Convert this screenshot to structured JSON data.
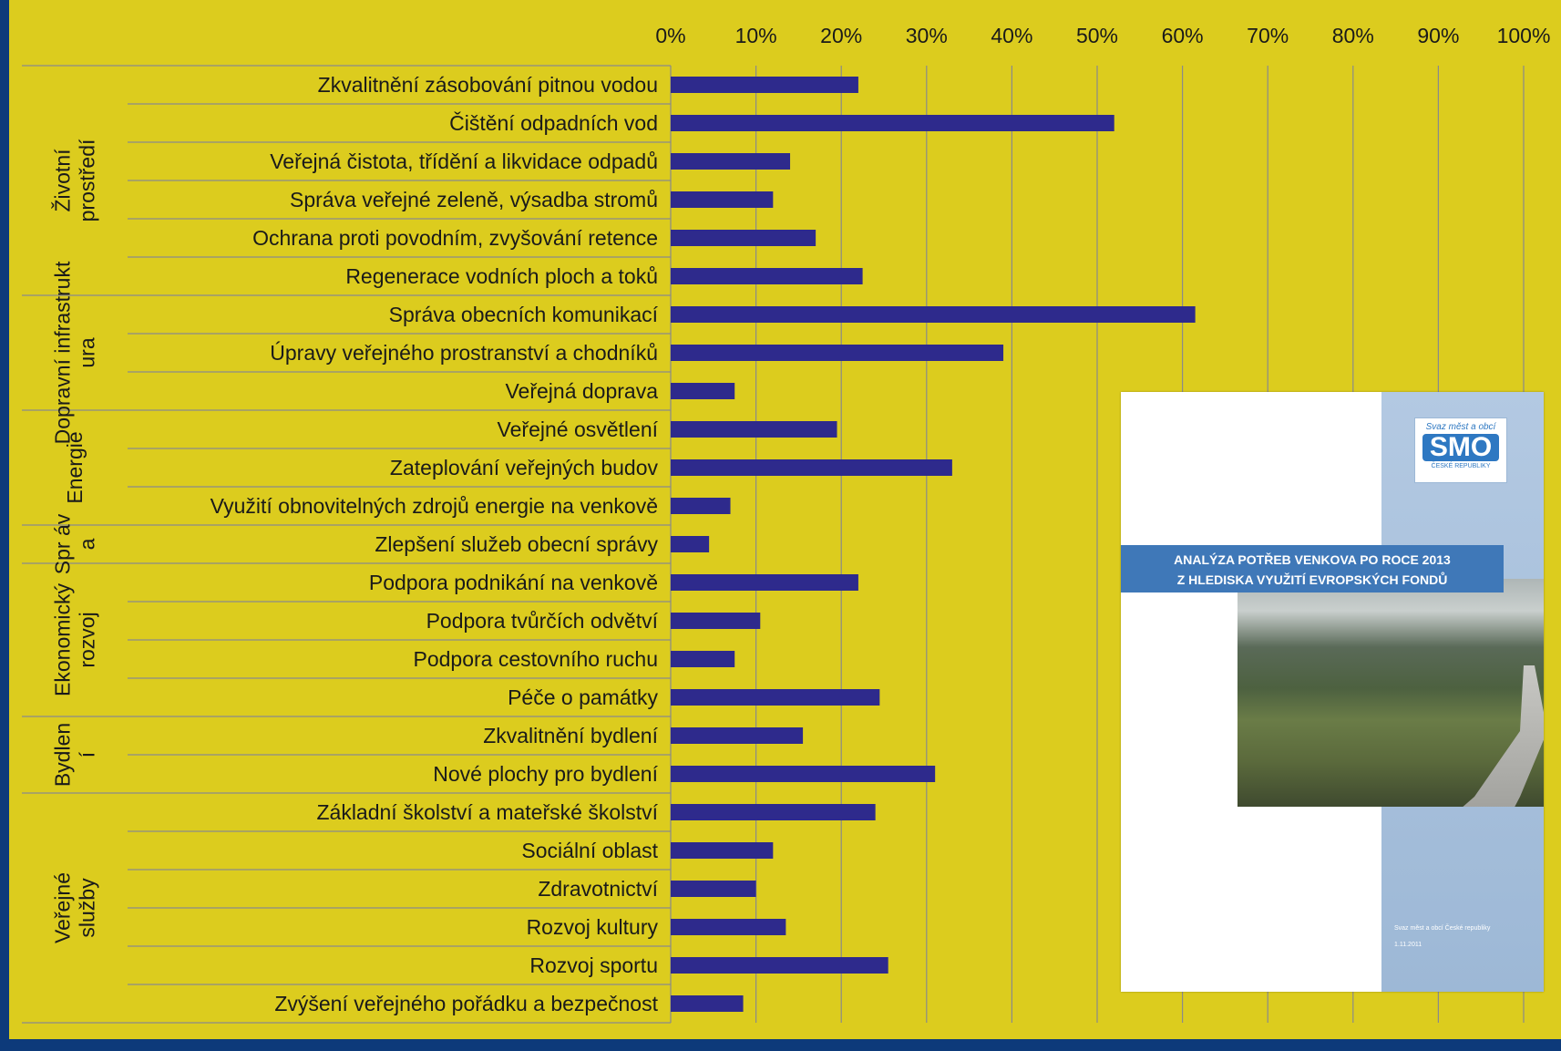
{
  "chart_data": {
    "type": "bar",
    "orientation": "horizontal",
    "title": "",
    "xlabel": "",
    "ylabel": "",
    "xlim": [
      0,
      100
    ],
    "x_ticks": [
      "0%",
      "10%",
      "20%",
      "30%",
      "40%",
      "50%",
      "60%",
      "70%",
      "80%",
      "90%",
      "100%"
    ],
    "grid": "vertical",
    "bar_color": "#2e2a8c",
    "groups": [
      {
        "label": "Životní prostředí",
        "start": 0,
        "count": 6
      },
      {
        "label": "Dopravní infrastrukt ura",
        "start": 6,
        "count": 3
      },
      {
        "label": "Energie",
        "start": 9,
        "count": 3
      },
      {
        "label": "Spr áv a",
        "start": 12,
        "count": 1
      },
      {
        "label": "Ekonomický rozvoj",
        "start": 13,
        "count": 4
      },
      {
        "label": "Bydlen í",
        "start": 17,
        "count": 2
      },
      {
        "label": "Veřejné služby",
        "start": 19,
        "count": 6
      }
    ],
    "categories": [
      "Zkvalitnění zásobování pitnou vodou",
      "Čištění odpadních vod",
      "Veřejná čistota, třídění a likvidace odpadů",
      "Správa veřejné zeleně, výsadba stromů",
      "Ochrana proti povodním, zvyšování retence",
      "Regenerace vodních ploch a toků",
      "Správa obecních komunikací",
      "Úpravy veřejného prostranství a chodníků",
      "Veřejná doprava",
      "Veřejné osvětlení",
      "Zateplování veřejných budov",
      "Využití obnovitelných zdrojů energie na venkově",
      "Zlepšení služeb obecní správy",
      "Podpora podnikání na venkově",
      "Podpora tvůrčích odvětví",
      "Podpora cestovního ruchu",
      "Péče o památky",
      "Zkvalitnění bydlení",
      "Nové plochy pro bydlení",
      "Základní školství a mateřské školství",
      "Sociální oblast",
      "Zdravotnictví",
      "Rozvoj kultury",
      "Rozvoj sportu",
      "Zvýšení veřejného pořádku a bezpečnost"
    ],
    "values": [
      22,
      52,
      14,
      12,
      17,
      22.5,
      61.5,
      39,
      7.5,
      19.5,
      33,
      7,
      4.5,
      22,
      10.5,
      7.5,
      24.5,
      15.5,
      31,
      24,
      12,
      10,
      13.5,
      25.5,
      8.5
    ]
  },
  "cover": {
    "logo_small": "Svaz měst a obcí",
    "logo_big": "SMO",
    "logo_sub": "ČESKÉ REPUBLIKY",
    "title_line1": "ANALÝZA POTŘEB VENKOVA PO ROCE 2013",
    "title_line2": "Z HLEDISKA VYUŽITÍ EVROPSKÝCH FONDŮ",
    "footer_line1": "Svaz měst a obcí České republiky",
    "footer_line2": "1.11.2011"
  }
}
